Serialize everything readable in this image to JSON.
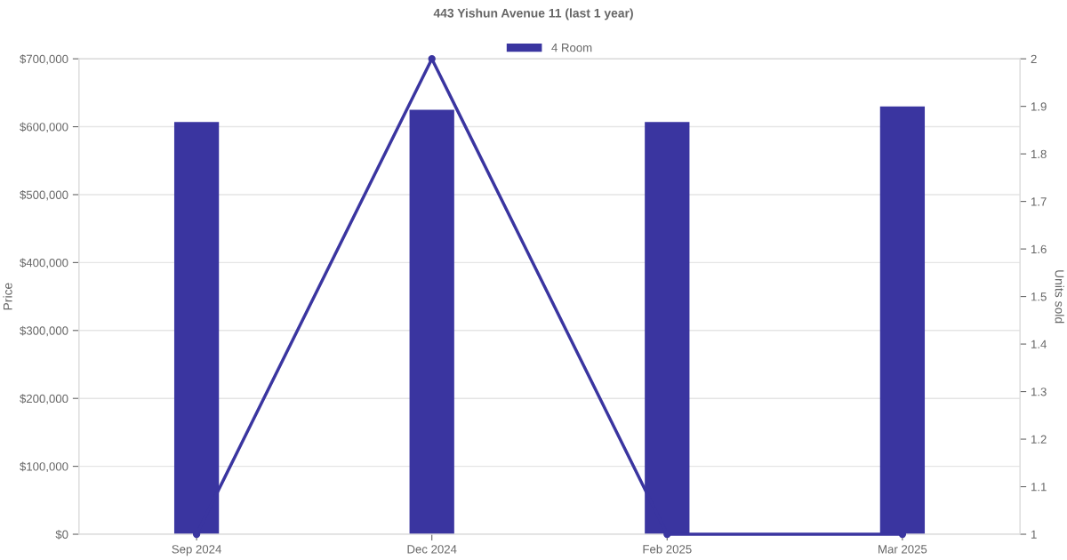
{
  "chart_data": {
    "type": "bar",
    "title": "443 Yishun Avenue 11 (last 1 year)",
    "ylabel": "Price",
    "y2label": "Units sold",
    "categories": [
      "Sep 2024",
      "Dec 2024",
      "Feb 2025",
      "Mar 2025"
    ],
    "series": [
      {
        "name": "4 Room",
        "color": "#3a35a0",
        "values": [
          607000,
          625000,
          607000,
          630000
        ]
      },
      {
        "type": "line",
        "axis": "y2",
        "color": "#3a35a0",
        "values": [
          1,
          2,
          1,
          1
        ],
        "marker": "circle"
      }
    ],
    "ylim": [
      0,
      700000
    ],
    "yticks": [
      {
        "value": 0,
        "label": "$0"
      },
      {
        "value": 100000,
        "label": "$100,000"
      },
      {
        "value": 200000,
        "label": "$200,000"
      },
      {
        "value": 300000,
        "label": "$300,000"
      },
      {
        "value": 400000,
        "label": "$400,000"
      },
      {
        "value": 500000,
        "label": "$500,000"
      },
      {
        "value": 600000,
        "label": "$600,000"
      },
      {
        "value": 700000,
        "label": "$700,000"
      }
    ],
    "y2lim": [
      1,
      2
    ],
    "y2ticks": [
      1,
      1.1,
      1.2,
      1.3,
      1.4,
      1.5,
      1.6,
      1.7,
      1.8,
      1.9,
      2
    ],
    "grid": "y",
    "legend": "top"
  }
}
